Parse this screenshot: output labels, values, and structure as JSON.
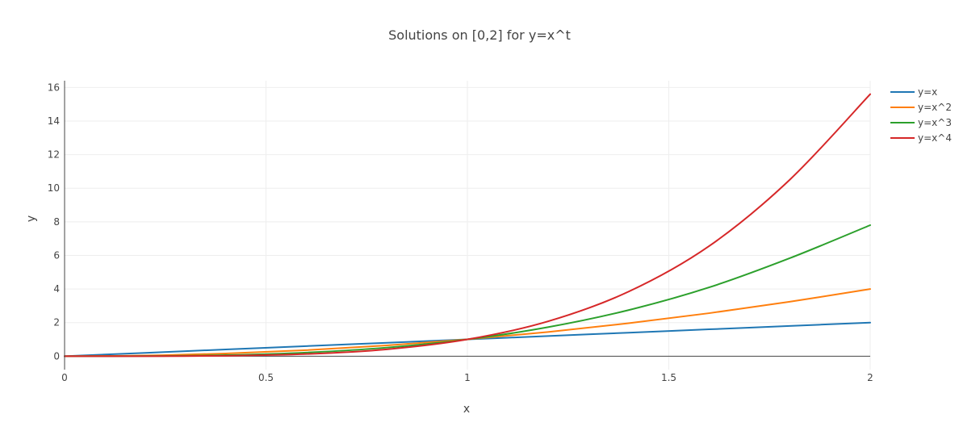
{
  "chart_data": {
    "type": "line",
    "title": "Solutions on [0,2] for y=x^t",
    "xlabel": "x",
    "ylabel": "y",
    "xlim": [
      0,
      2
    ],
    "ylim": [
      -0.8,
      16.4
    ],
    "x_ticks": [
      0,
      0.5,
      1,
      1.5,
      2
    ],
    "x_tick_labels": [
      "0",
      "0.5",
      "1",
      "1.5",
      "2"
    ],
    "y_ticks": [
      0,
      2,
      4,
      6,
      8,
      10,
      12,
      14,
      16
    ],
    "y_tick_labels": [
      "0",
      "2",
      "4",
      "6",
      "8",
      "10",
      "12",
      "14",
      "16"
    ],
    "grid": true,
    "legend_position": "top-right",
    "x": [
      0,
      0.2,
      0.4,
      0.6,
      0.8,
      1.0,
      1.2,
      1.4,
      1.6,
      1.8,
      2.0
    ],
    "series": [
      {
        "name": "y=x",
        "color": "#1f77b4",
        "values": [
          0,
          0.2,
          0.4,
          0.6,
          0.8,
          1.0,
          1.2,
          1.4,
          1.6,
          1.8,
          2.0
        ]
      },
      {
        "name": "y=x^2",
        "color": "#ff7f0e",
        "values": [
          0,
          0.04,
          0.16,
          0.36,
          0.64,
          1.0,
          1.44,
          1.96,
          2.56,
          3.24,
          4.0
        ]
      },
      {
        "name": "y=x^3",
        "color": "#2ca02c",
        "values": [
          0,
          0.008,
          0.064,
          0.216,
          0.512,
          1.0,
          1.728,
          2.744,
          4.096,
          5.832,
          7.8
        ]
      },
      {
        "name": "y=x^4",
        "color": "#d62728",
        "values": [
          0,
          0.0016,
          0.0256,
          0.1296,
          0.4096,
          1.0,
          2.0736,
          3.8416,
          6.5536,
          10.4976,
          15.6
        ]
      }
    ]
  }
}
